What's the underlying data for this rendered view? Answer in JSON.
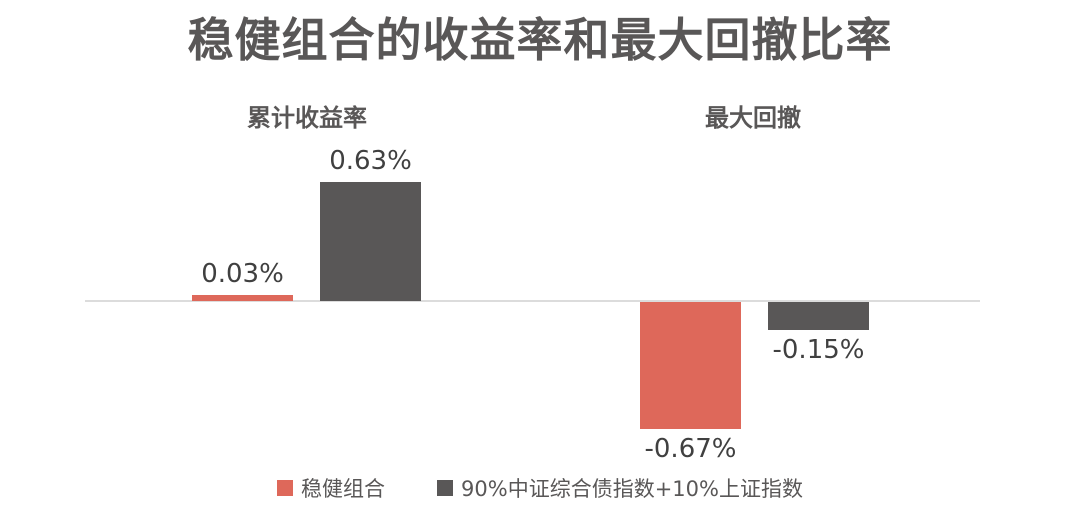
{
  "chart": {
    "title": "稳健组合的收益率和最大回撤比率",
    "groups": [
      {
        "label": "累计收益率",
        "bars": [
          {
            "series": "稳健组合",
            "value": 0.03,
            "label": "0.03%"
          },
          {
            "series": "90%中证综合债指数+10%上证指数",
            "value": 0.63,
            "label": "0.63%"
          }
        ]
      },
      {
        "label": "最大回撤",
        "bars": [
          {
            "series": "稳健组合",
            "value": -0.67,
            "label": "-0.67%"
          },
          {
            "series": "90%中证综合债指数+10%上证指数",
            "value": -0.15,
            "label": "-0.15%"
          }
        ]
      }
    ],
    "legend": [
      {
        "label": "稳健组合",
        "color": "#DE685A"
      },
      {
        "label": "90%中证综合债指数+10%上证指数",
        "color": "#595757"
      }
    ]
  },
  "chart_data": {
    "type": "bar",
    "title": "稳健组合的收益率和最大回撤比率",
    "categories": [
      "累计收益率",
      "最大回撤"
    ],
    "series": [
      {
        "name": "稳健组合",
        "values": [
          0.03,
          -0.67
        ],
        "color": "#DE685A"
      },
      {
        "name": "90%中证综合债指数+10%上证指数",
        "values": [
          0.63,
          -0.15
        ],
        "color": "#595757"
      }
    ],
    "data_labels": [
      "0.03%",
      "0.63%",
      "-0.67%",
      "-0.15%"
    ],
    "unit": "%",
    "xlabel": "",
    "ylabel": "",
    "ylim": [
      -0.8,
      0.8
    ],
    "grid": false,
    "axis_baseline": 0,
    "legend_position": "bottom"
  },
  "colors": {
    "bar_red": "#DE685A",
    "bar_dark": "#595757",
    "axis_line": "#DCDCDC",
    "value_label": "#404040",
    "title_text": "#595757"
  }
}
